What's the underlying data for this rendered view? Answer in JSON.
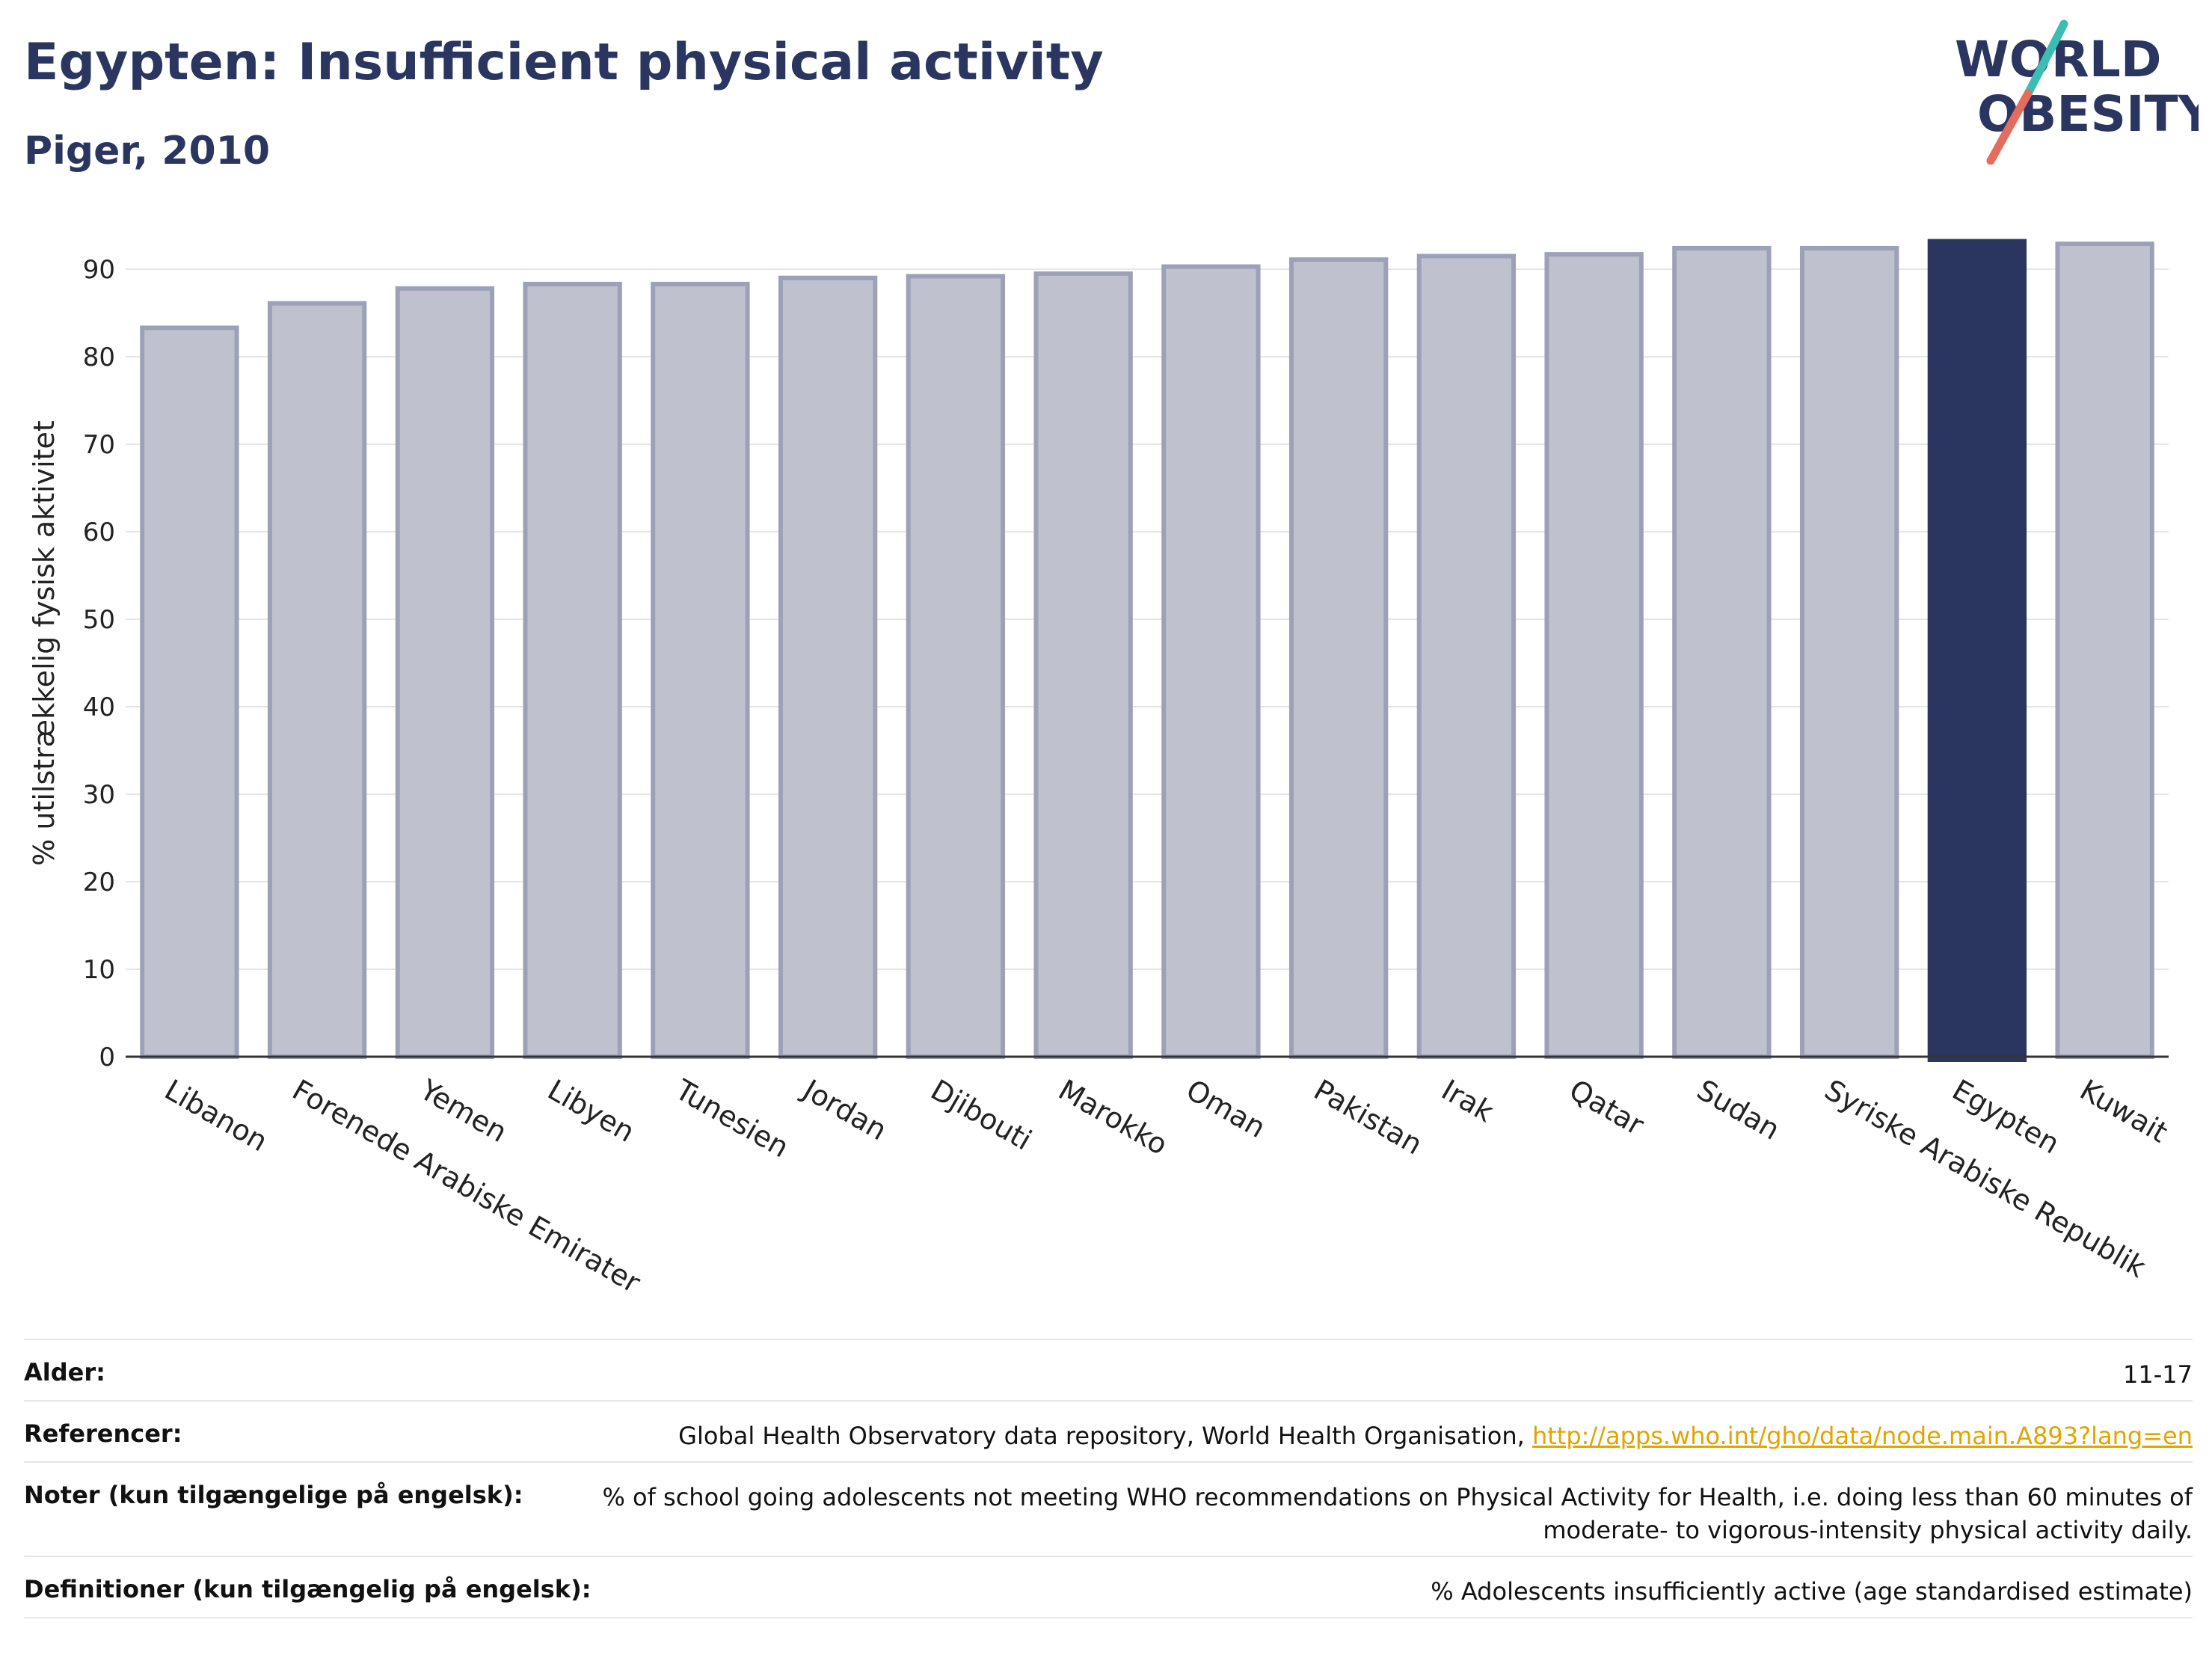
{
  "header": {
    "title": "Egypten: Insufficient physical activity",
    "subtitle": "Piger, 2010"
  },
  "logo": {
    "line1": "WORLD",
    "line2": "OBESITY",
    "colors": {
      "text": "#2b3660",
      "slash_top": "#3bbdb4",
      "slash_bottom": "#e56b5d"
    }
  },
  "chart_data": {
    "type": "bar",
    "categories": [
      "Libanon",
      "Forenede Arabiske Emirater",
      "Yemen",
      "Libyen",
      "Tunesien",
      "Jordan",
      "Djibouti",
      "Marokko",
      "Oman",
      "Pakistan",
      "Irak",
      "Qatar",
      "Sudan",
      "Syriske Arabiske Republik",
      "Egypten",
      "Kuwait"
    ],
    "values": [
      83.3,
      86.1,
      87.8,
      88.3,
      88.3,
      89.0,
      89.2,
      89.5,
      90.3,
      91.1,
      91.5,
      91.7,
      92.4,
      92.4,
      93.2,
      92.9
    ],
    "highlight": "Egypten",
    "title": "",
    "xlabel": "",
    "ylabel": "% utilstrækkelig fysisk aktivitet",
    "ylim": [
      0,
      95
    ],
    "yticks": [
      0,
      10,
      20,
      30,
      40,
      50,
      60,
      70,
      80,
      90
    ],
    "grid": true,
    "colors": {
      "bar": "#bfc2ce",
      "bar_edge": "#9ca1b8",
      "highlight": "#2b3660",
      "grid": "#e6e6ea",
      "axis": "#333333"
    }
  },
  "meta": {
    "rows": [
      {
        "label": "Alder:",
        "value": "11-17"
      },
      {
        "label": "Referencer:",
        "value": "Global Health Observatory data repository, World Health Organisation, ",
        "link": "http://apps.who.int/gho/data/node.main.A893?lang=en"
      },
      {
        "label": "Noter (kun tilgængelige på engelsk):",
        "value": "% of school going adolescents not meeting WHO recommendations on Physical Activity for Health, i.e. doing less than 60 minutes of moderate- to vigorous-intensity physical activity daily."
      },
      {
        "label": "Definitioner (kun tilgængelig på engelsk):",
        "value": "% Adolescents insufficiently active (age standardised estimate)"
      }
    ]
  }
}
